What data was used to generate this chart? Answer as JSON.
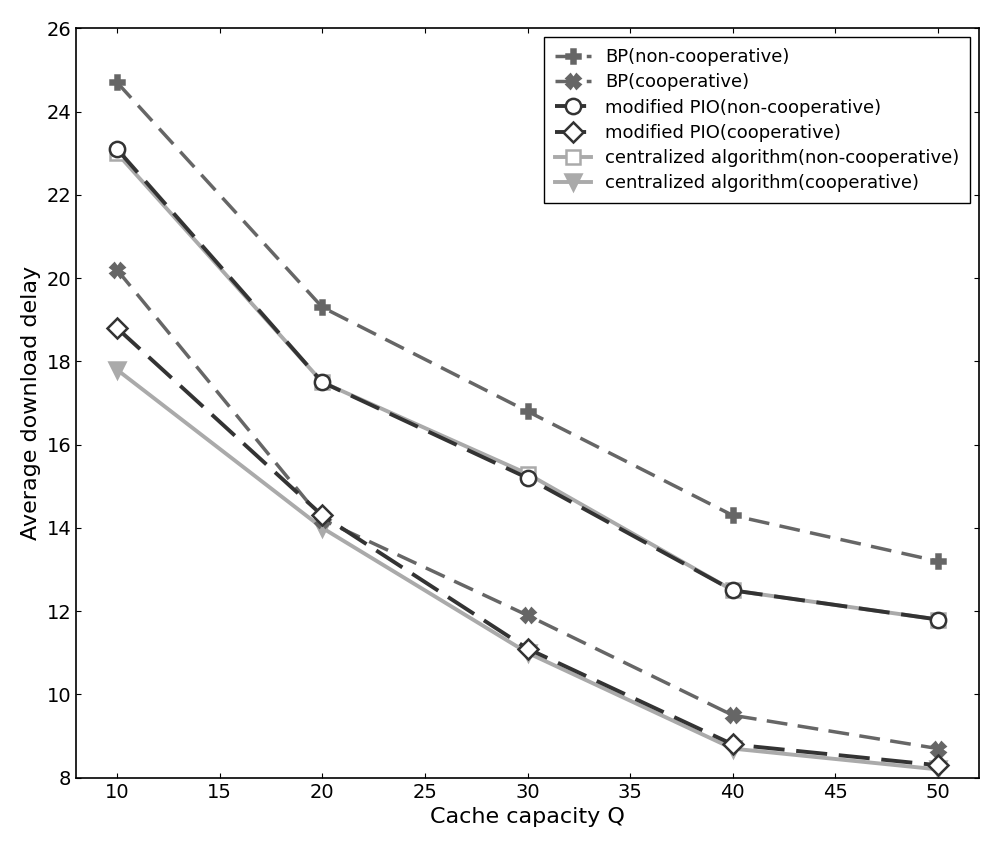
{
  "x": [
    10,
    20,
    30,
    40,
    50
  ],
  "series": [
    {
      "label": "BP(non-cooperative)",
      "y": [
        24.7,
        19.3,
        16.8,
        14.3,
        13.2
      ],
      "color": "#666666",
      "linestyle": "--",
      "marker": "P",
      "linewidth": 2.5,
      "markersize": 10,
      "markerfacecolor": "#666666",
      "dashes": [
        6,
        3
      ],
      "zorder": 3
    },
    {
      "label": "BP(cooperative)",
      "y": [
        20.2,
        14.2,
        11.9,
        9.5,
        8.7
      ],
      "color": "#666666",
      "linestyle": "--",
      "marker": "X",
      "linewidth": 2.5,
      "markersize": 10,
      "markerfacecolor": "#666666",
      "dashes": [
        6,
        3
      ],
      "zorder": 3
    },
    {
      "label": "modified PIO(non-cooperative)",
      "y": [
        23.1,
        17.5,
        15.2,
        12.5,
        11.8
      ],
      "color": "#333333",
      "linestyle": "--",
      "marker": "o",
      "linewidth": 2.8,
      "markersize": 11,
      "markerfacecolor": "white",
      "dashes": [
        8,
        3
      ],
      "zorder": 4
    },
    {
      "label": "modified PIO(cooperative)",
      "y": [
        18.8,
        14.3,
        11.1,
        8.8,
        8.3
      ],
      "color": "#333333",
      "linestyle": "--",
      "marker": "D",
      "linewidth": 2.8,
      "markersize": 10,
      "markerfacecolor": "white",
      "dashes": [
        8,
        3
      ],
      "zorder": 4
    },
    {
      "label": "centralized algorithm(non-cooperative)",
      "y": [
        23.0,
        17.5,
        15.3,
        12.5,
        11.8
      ],
      "color": "#aaaaaa",
      "linestyle": "-",
      "marker": "s",
      "linewidth": 2.8,
      "markersize": 10,
      "markerfacecolor": "white",
      "dashes": [],
      "zorder": 2
    },
    {
      "label": "centralized algorithm(cooperative)",
      "y": [
        17.8,
        14.0,
        11.0,
        8.7,
        8.2
      ],
      "color": "#aaaaaa",
      "linestyle": "-",
      "marker": "v",
      "linewidth": 2.8,
      "markersize": 11,
      "markerfacecolor": "#aaaaaa",
      "dashes": [],
      "zorder": 2
    }
  ],
  "xlabel": "Cache capacity Q",
  "ylabel": "Average download delay",
  "xlim": [
    8,
    52
  ],
  "ylim": [
    8,
    26
  ],
  "xticks": [
    10,
    15,
    20,
    25,
    30,
    35,
    40,
    45,
    50
  ],
  "yticks": [
    8,
    10,
    12,
    14,
    16,
    18,
    20,
    22,
    24,
    26
  ],
  "legend_loc": "upper right",
  "legend_fontsize": 13,
  "tick_fontsize": 14,
  "label_fontsize": 16,
  "figsize": [
    10.0,
    8.48
  ]
}
